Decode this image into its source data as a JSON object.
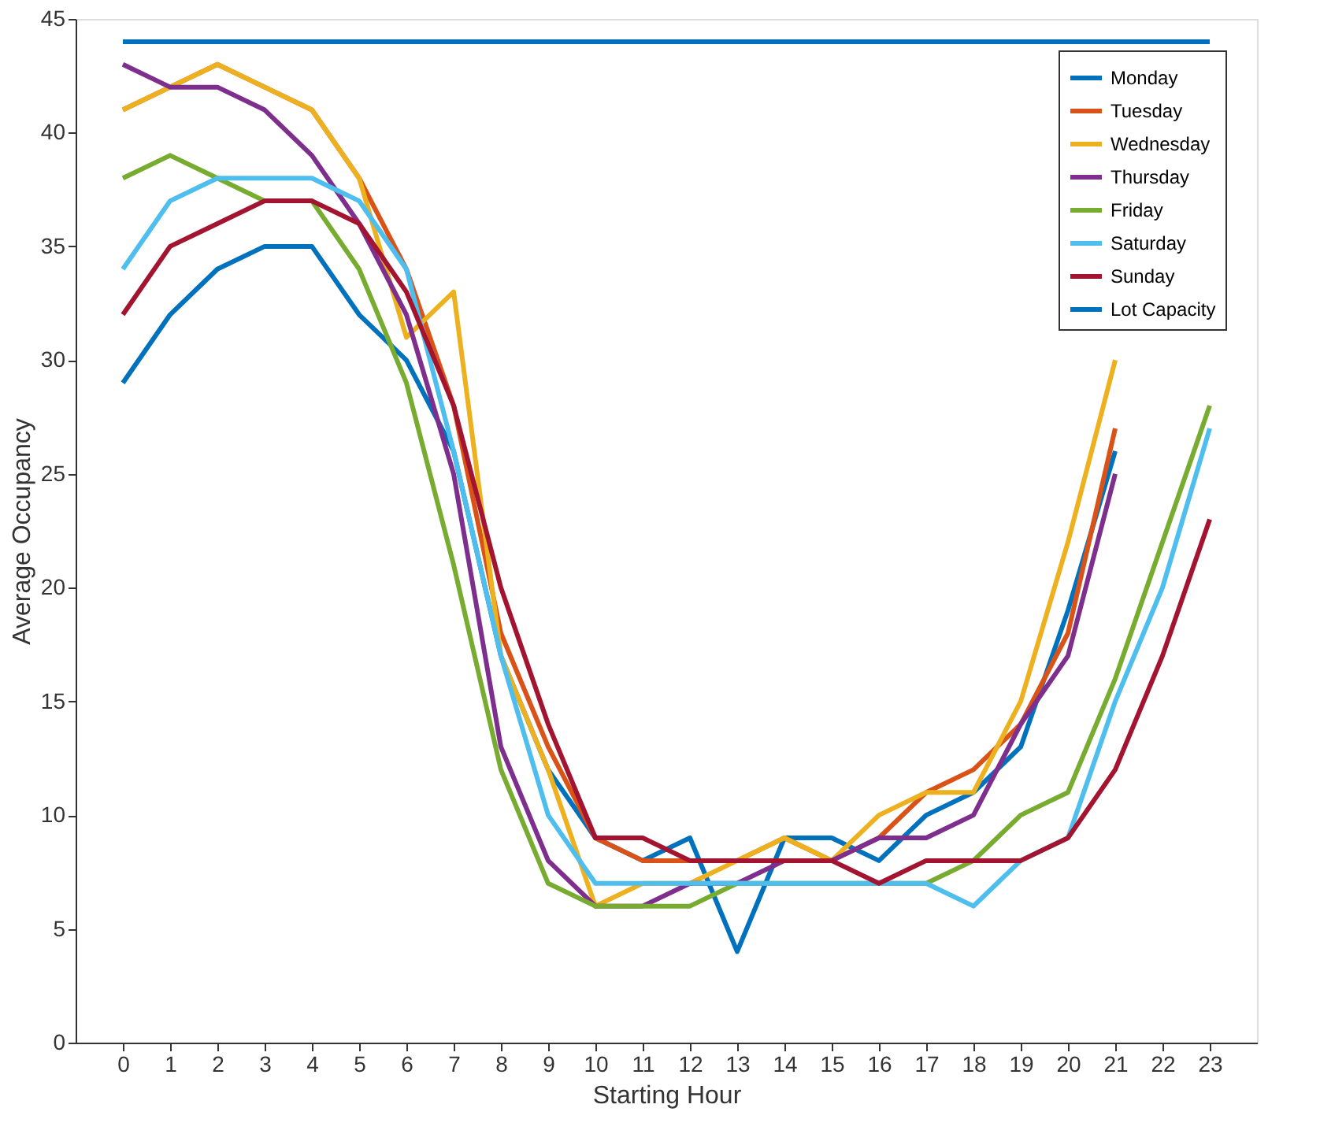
{
  "chart_data": {
    "type": "line",
    "xlabel": "Starting Hour",
    "ylabel": "Average Occupancy",
    "x": [
      0,
      1,
      2,
      3,
      4,
      5,
      6,
      7,
      8,
      9,
      10,
      11,
      12,
      13,
      14,
      15,
      16,
      17,
      18,
      19,
      20,
      21,
      22,
      23
    ],
    "xlim": [
      -1,
      24
    ],
    "xticks": [
      0,
      1,
      2,
      3,
      4,
      5,
      6,
      7,
      8,
      9,
      10,
      11,
      12,
      13,
      14,
      15,
      16,
      17,
      18,
      19,
      20,
      21,
      22,
      23
    ],
    "ylim": [
      0,
      45
    ],
    "yticks": [
      0,
      5,
      10,
      15,
      20,
      25,
      30,
      35,
      40,
      45
    ],
    "grid": false,
    "legend": "top right",
    "line_style": "solid",
    "marker": "none",
    "series": [
      {
        "name": "Monday",
        "color": "#0072bd",
        "values": [
          29,
          32,
          34,
          35,
          35,
          32,
          30,
          26,
          17,
          12,
          9,
          8,
          9,
          4,
          9,
          9,
          8,
          10,
          11,
          13,
          19,
          26,
          null,
          null
        ]
      },
      {
        "name": "Tuesday",
        "color": "#d95319",
        "values": [
          41,
          42,
          43,
          42,
          41,
          38,
          34,
          28,
          18,
          13,
          9,
          8,
          8,
          8,
          9,
          8,
          9,
          11,
          12,
          14,
          18,
          27,
          null,
          null
        ]
      },
      {
        "name": "Wednesday",
        "color": "#edb120",
        "values": [
          41,
          42,
          43,
          42,
          41,
          38,
          31,
          33,
          17,
          12,
          6,
          7,
          7,
          8,
          9,
          8,
          10,
          11,
          11,
          15,
          22,
          30,
          null,
          null
        ]
      },
      {
        "name": "Thursday",
        "color": "#7e2f8e",
        "values": [
          43,
          42,
          42,
          41,
          39,
          36,
          32,
          25,
          13,
          8,
          6,
          6,
          7,
          7,
          8,
          8,
          9,
          9,
          10,
          14,
          17,
          25,
          null,
          null
        ]
      },
      {
        "name": "Friday",
        "color": "#77ac30",
        "values": [
          38,
          39,
          38,
          37,
          37,
          34,
          29,
          21,
          12,
          7,
          6,
          6,
          6,
          7,
          7,
          7,
          7,
          7,
          8,
          10,
          11,
          16,
          22,
          28
        ]
      },
      {
        "name": "Saturday",
        "color": "#4dbeee",
        "values": [
          34,
          37,
          38,
          38,
          38,
          37,
          34,
          26,
          17,
          10,
          7,
          7,
          7,
          7,
          7,
          7,
          7,
          7,
          6,
          8,
          9,
          15,
          20,
          27
        ]
      },
      {
        "name": "Sunday",
        "color": "#a2142f",
        "values": [
          32,
          35,
          36,
          37,
          37,
          36,
          33,
          28,
          20,
          14,
          9,
          9,
          8,
          8,
          8,
          8,
          7,
          8,
          8,
          8,
          9,
          12,
          17,
          23
        ]
      },
      {
        "name": "Lot Capacity",
        "color": "#0072bd",
        "values": [
          44,
          44,
          44,
          44,
          44,
          44,
          44,
          44,
          44,
          44,
          44,
          44,
          44,
          44,
          44,
          44,
          44,
          44,
          44,
          44,
          44,
          44,
          44,
          44
        ]
      }
    ]
  }
}
